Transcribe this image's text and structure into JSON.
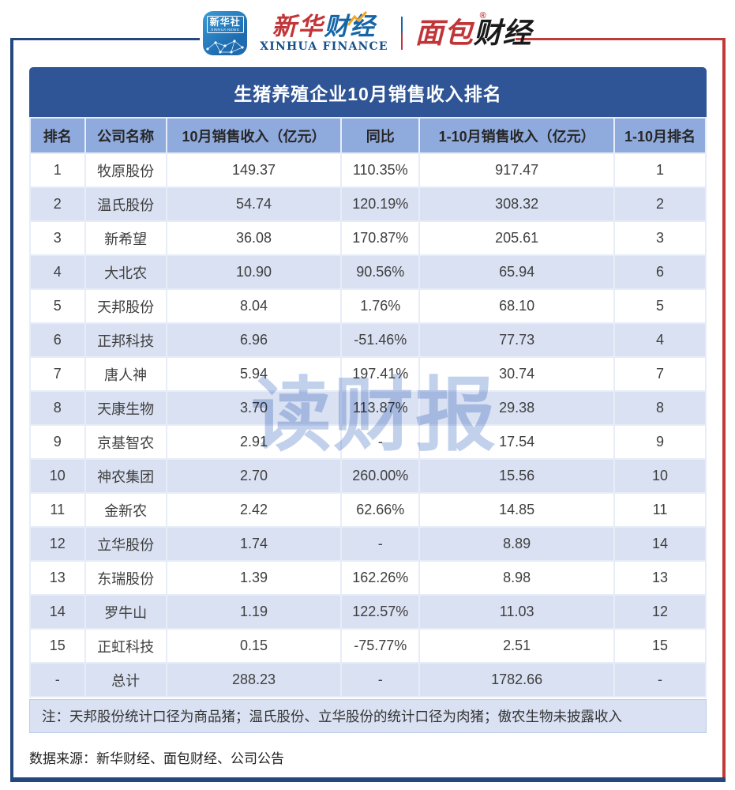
{
  "header_logos": {
    "xinhua_news": {
      "name_cn": "新华社",
      "name_en": "XINHUA NEWS"
    },
    "xinhua_finance": {
      "cn_part1": "新华",
      "cn_part2": "财经",
      "en": "XINHUA FINANCE"
    },
    "bread_finance": {
      "cn_part1": "面包",
      "cn_part2": "财经",
      "reg": "®"
    }
  },
  "watermark": "读财报",
  "source": "数据来源：新华财经、面包财经、公司公告",
  "table": {
    "title": "生猪养殖企业10月销售收入排名",
    "columns": [
      "排名",
      "公司名称",
      "10月销售收入（亿元）",
      "同比",
      "1-10月销售收入（亿元）",
      "1-10月排名"
    ],
    "rows": [
      [
        "1",
        "牧原股份",
        "149.37",
        "110.35%",
        "917.47",
        "1"
      ],
      [
        "2",
        "温氏股份",
        "54.74",
        "120.19%",
        "308.32",
        "2"
      ],
      [
        "3",
        "新希望",
        "36.08",
        "170.87%",
        "205.61",
        "3"
      ],
      [
        "4",
        "大北农",
        "10.90",
        "90.56%",
        "65.94",
        "6"
      ],
      [
        "5",
        "天邦股份",
        "8.04",
        "1.76%",
        "68.10",
        "5"
      ],
      [
        "6",
        "正邦科技",
        "6.96",
        "-51.46%",
        "77.73",
        "4"
      ],
      [
        "7",
        "唐人神",
        "5.94",
        "197.41%",
        "30.74",
        "7"
      ],
      [
        "8",
        "天康生物",
        "3.70",
        "113.87%",
        "29.38",
        "8"
      ],
      [
        "9",
        "京基智农",
        "2.91",
        "-",
        "17.54",
        "9"
      ],
      [
        "10",
        "神农集团",
        "2.70",
        "260.00%",
        "15.56",
        "10"
      ],
      [
        "11",
        "金新农",
        "2.42",
        "62.66%",
        "14.85",
        "11"
      ],
      [
        "12",
        "立华股份",
        "1.74",
        "-",
        "8.89",
        "14"
      ],
      [
        "13",
        "东瑞股份",
        "1.39",
        "162.26%",
        "8.98",
        "13"
      ],
      [
        "14",
        "罗牛山",
        "1.19",
        "122.57%",
        "11.03",
        "12"
      ],
      [
        "15",
        "正虹科技",
        "0.15",
        "-75.77%",
        "2.51",
        "15"
      ],
      [
        "-",
        "总计",
        "288.23",
        "-",
        "1782.66",
        "-"
      ]
    ],
    "note": "注：天邦股份统计口径为商品猪；温氏股份、立华股份的统计口径为肉猪；傲农生物未披露收入"
  },
  "chart_data": {
    "type": "table",
    "title": "生猪养殖企业10月销售收入排名",
    "columns": [
      "排名",
      "公司名称",
      "10月销售收入（亿元）",
      "同比",
      "1-10月销售收入（亿元）",
      "1-10月排名"
    ],
    "rows": [
      [
        "1",
        "牧原股份",
        "149.37",
        "110.35%",
        "917.47",
        "1"
      ],
      [
        "2",
        "温氏股份",
        "54.74",
        "120.19%",
        "308.32",
        "2"
      ],
      [
        "3",
        "新希望",
        "36.08",
        "170.87%",
        "205.61",
        "3"
      ],
      [
        "4",
        "大北农",
        "10.90",
        "90.56%",
        "65.94",
        "6"
      ],
      [
        "5",
        "天邦股份",
        "8.04",
        "1.76%",
        "68.10",
        "5"
      ],
      [
        "6",
        "正邦科技",
        "6.96",
        "-51.46%",
        "77.73",
        "4"
      ],
      [
        "7",
        "唐人神",
        "5.94",
        "197.41%",
        "30.74",
        "7"
      ],
      [
        "8",
        "天康生物",
        "3.70",
        "113.87%",
        "29.38",
        "8"
      ],
      [
        "9",
        "京基智农",
        "2.91",
        "-",
        "17.54",
        "9"
      ],
      [
        "10",
        "神农集团",
        "2.70",
        "260.00%",
        "15.56",
        "10"
      ],
      [
        "11",
        "金新农",
        "2.42",
        "62.66%",
        "14.85",
        "11"
      ],
      [
        "12",
        "立华股份",
        "1.74",
        "-",
        "8.89",
        "14"
      ],
      [
        "13",
        "东瑞股份",
        "1.39",
        "162.26%",
        "8.98",
        "13"
      ],
      [
        "14",
        "罗牛山",
        "1.19",
        "122.57%",
        "11.03",
        "12"
      ],
      [
        "15",
        "正虹科技",
        "0.15",
        "-75.77%",
        "2.51",
        "15"
      ],
      [
        "-",
        "总计",
        "288.23",
        "-",
        "1782.66",
        "-"
      ]
    ],
    "note": "注：天邦股份统计口径为商品猪；温氏股份、立华股份的统计口径为肉猪；傲农生物未披露收入",
    "source": "数据来源：新华财经、面包财经、公司公告"
  },
  "colors": {
    "title_bar": "#2f5597",
    "header_row": "#8faadc",
    "band_row": "#d9e1f2",
    "frame_blue": "#24477f",
    "frame_red": "#c03a3a",
    "logo_red": "#c13539",
    "logo_blue": "#1565a7",
    "watermark": "#b7c9e8"
  }
}
